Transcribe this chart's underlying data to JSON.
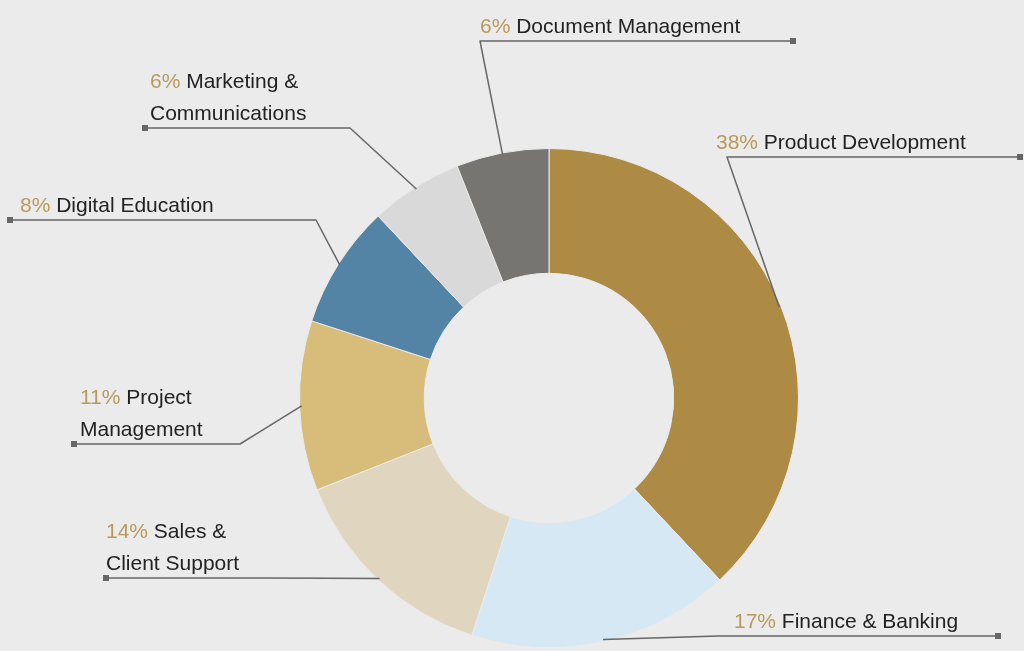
{
  "chart_data": {
    "type": "donut",
    "categories": [
      "Product Development",
      "Finance & Banking",
      "Sales & Client Support",
      "Project Management",
      "Digital Education",
      "Marketing & Communications",
      "Document Management"
    ],
    "values": [
      38,
      17,
      14,
      11,
      8,
      6,
      6
    ],
    "value_labels": [
      "38%",
      "17%",
      "14%",
      "11%",
      "8%",
      "6%",
      "6%"
    ],
    "colors": [
      "#ad8b45",
      "#d6e8f4",
      "#e0d6bf",
      "#d8bd7a",
      "#5484a5",
      "#d9d9d9",
      "#767572"
    ]
  }
}
